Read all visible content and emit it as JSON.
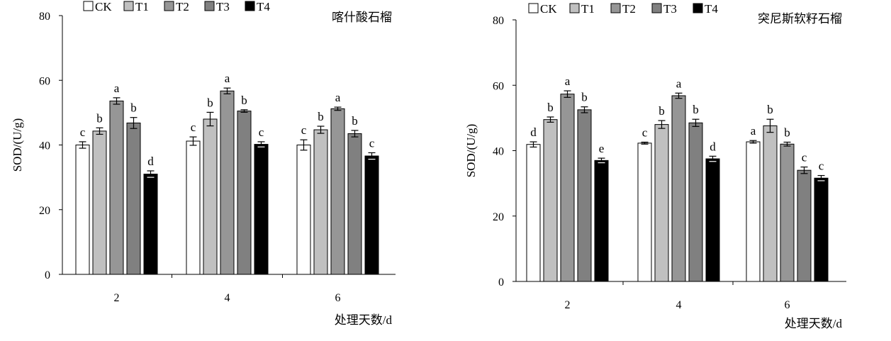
{
  "chart_data": [
    {
      "type": "bar",
      "title": "喀什酸石榴",
      "xlabel": "处理天数/d",
      "ylabel": "SOD/(U/g)",
      "ylim": [
        0,
        80
      ],
      "yticks": [
        0,
        20,
        40,
        60,
        80
      ],
      "categories": [
        "2",
        "4",
        "6"
      ],
      "legend_placement": "top-left",
      "grid": false,
      "series": [
        {
          "name": "CK",
          "color": "#ffffff",
          "values": [
            40.0,
            41.2,
            40.0
          ],
          "errors": [
            1.0,
            1.3,
            1.6
          ],
          "labels": [
            "c",
            "c",
            "c"
          ]
        },
        {
          "name": "T1",
          "color": "#c0c0c0",
          "values": [
            44.3,
            48.0,
            44.7
          ],
          "errors": [
            1.0,
            2.1,
            1.1
          ],
          "labels": [
            "b",
            "b",
            "b"
          ]
        },
        {
          "name": "T2",
          "color": "#969696",
          "values": [
            53.6,
            56.7,
            51.2
          ],
          "errors": [
            1.0,
            0.9,
            0.5
          ],
          "labels": [
            "a",
            "a",
            "a"
          ]
        },
        {
          "name": "T3",
          "color": "#808080",
          "values": [
            46.8,
            50.5,
            43.5
          ],
          "errors": [
            1.7,
            0.4,
            1.0
          ],
          "labels": [
            "b",
            "b",
            "b"
          ]
        },
        {
          "name": "T4",
          "color": "#000000",
          "values": [
            31.0,
            40.2,
            36.6
          ],
          "errors": [
            1.0,
            0.8,
            1.0
          ],
          "labels": [
            "d",
            "c",
            "c"
          ]
        }
      ]
    },
    {
      "type": "bar",
      "title": "突尼斯软籽石榴",
      "xlabel": "处理天数/d",
      "ylabel": "SOD/(U/g)",
      "ylim": [
        0,
        80
      ],
      "yticks": [
        0,
        20,
        40,
        60,
        80
      ],
      "categories": [
        "2",
        "4",
        "6"
      ],
      "legend_placement": "top-left",
      "grid": false,
      "series": [
        {
          "name": "CK",
          "color": "#ffffff",
          "values": [
            41.9,
            42.3,
            42.7
          ],
          "errors": [
            0.8,
            0.3,
            0.4
          ],
          "labels": [
            "d",
            "c",
            "a"
          ]
        },
        {
          "name": "T1",
          "color": "#c0c0c0",
          "values": [
            49.5,
            48.0,
            47.6
          ],
          "errors": [
            0.8,
            1.2,
            2.0
          ],
          "labels": [
            "b",
            "b",
            "b"
          ]
        },
        {
          "name": "T2",
          "color": "#969696",
          "values": [
            57.3,
            56.8,
            42.0
          ],
          "errors": [
            1.0,
            0.8,
            0.6
          ],
          "labels": [
            "a",
            "a",
            "b"
          ]
        },
        {
          "name": "T3",
          "color": "#808080",
          "values": [
            52.5,
            48.5,
            34.0
          ],
          "errors": [
            0.9,
            1.1,
            1.0
          ],
          "labels": [
            "b",
            "b",
            "c"
          ]
        },
        {
          "name": "T4",
          "color": "#000000",
          "values": [
            37.0,
            37.5,
            31.6
          ],
          "errors": [
            0.7,
            0.8,
            0.8
          ],
          "labels": [
            "e",
            "d",
            "c"
          ]
        }
      ]
    }
  ]
}
